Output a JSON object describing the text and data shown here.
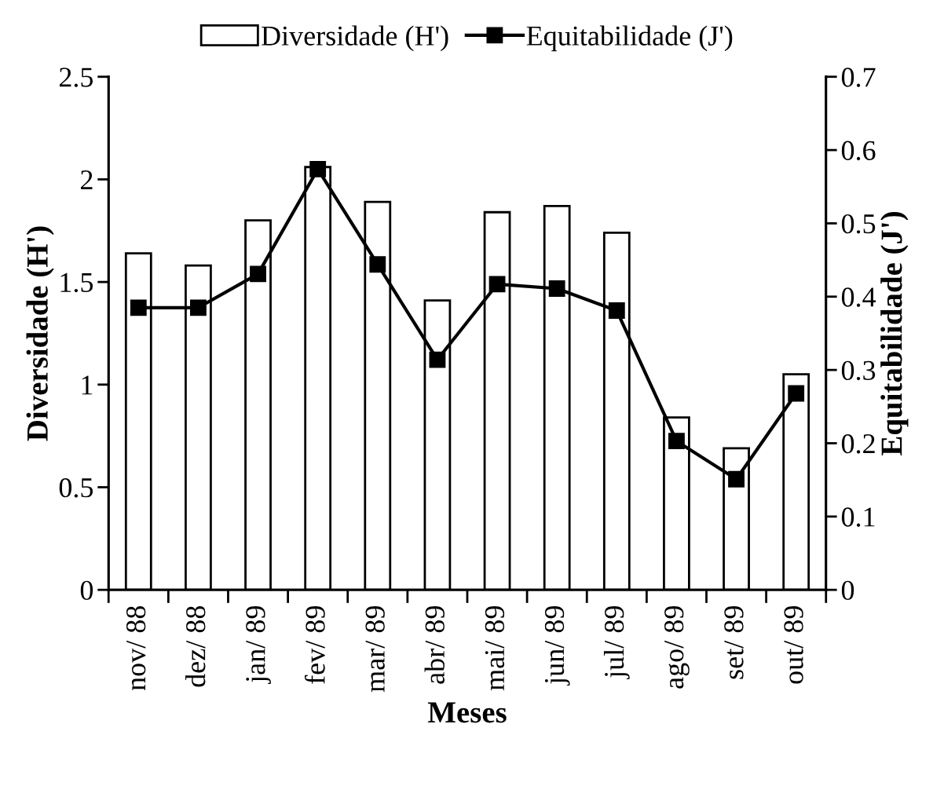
{
  "chart_data": {
    "type": "bar",
    "xlabel": "Meses",
    "ylabel": "Diversidade (H')",
    "y2label": "Equitabilidade (J')",
    "categories": [
      "nov/ 88",
      "dez/ 88",
      "jan/ 89",
      "fev/ 89",
      "mar/ 89",
      "abr/ 89",
      "mai/ 89",
      "jun/ 89",
      "jul/ 89",
      "ago/ 89",
      "set/ 89",
      "out/ 89"
    ],
    "series": [
      {
        "name": "Diversidade (H')",
        "color": "#ffffff",
        "values": [
          1.64,
          1.58,
          1.8,
          2.06,
          1.89,
          1.41,
          1.84,
          1.87,
          1.74,
          0.84,
          0.69,
          1.05
        ]
      },
      {
        "name": "Equitabilidade (J')",
        "type": "line",
        "axis": "y2",
        "color": "#000000",
        "marker": "square",
        "values": [
          0.385,
          0.385,
          0.431,
          0.574,
          0.444,
          0.314,
          0.417,
          0.411,
          0.381,
          0.203,
          0.151,
          0.268
        ]
      }
    ],
    "ylim": [
      0,
      2.5
    ],
    "yticks": [
      0,
      0.5,
      1,
      1.5,
      2,
      2.5
    ],
    "y2lim": [
      0,
      0.7
    ],
    "y2ticks": [
      0,
      0.1,
      0.2,
      0.3,
      0.4,
      0.5,
      0.6,
      0.7
    ],
    "grid": false,
    "legend": "top"
  }
}
